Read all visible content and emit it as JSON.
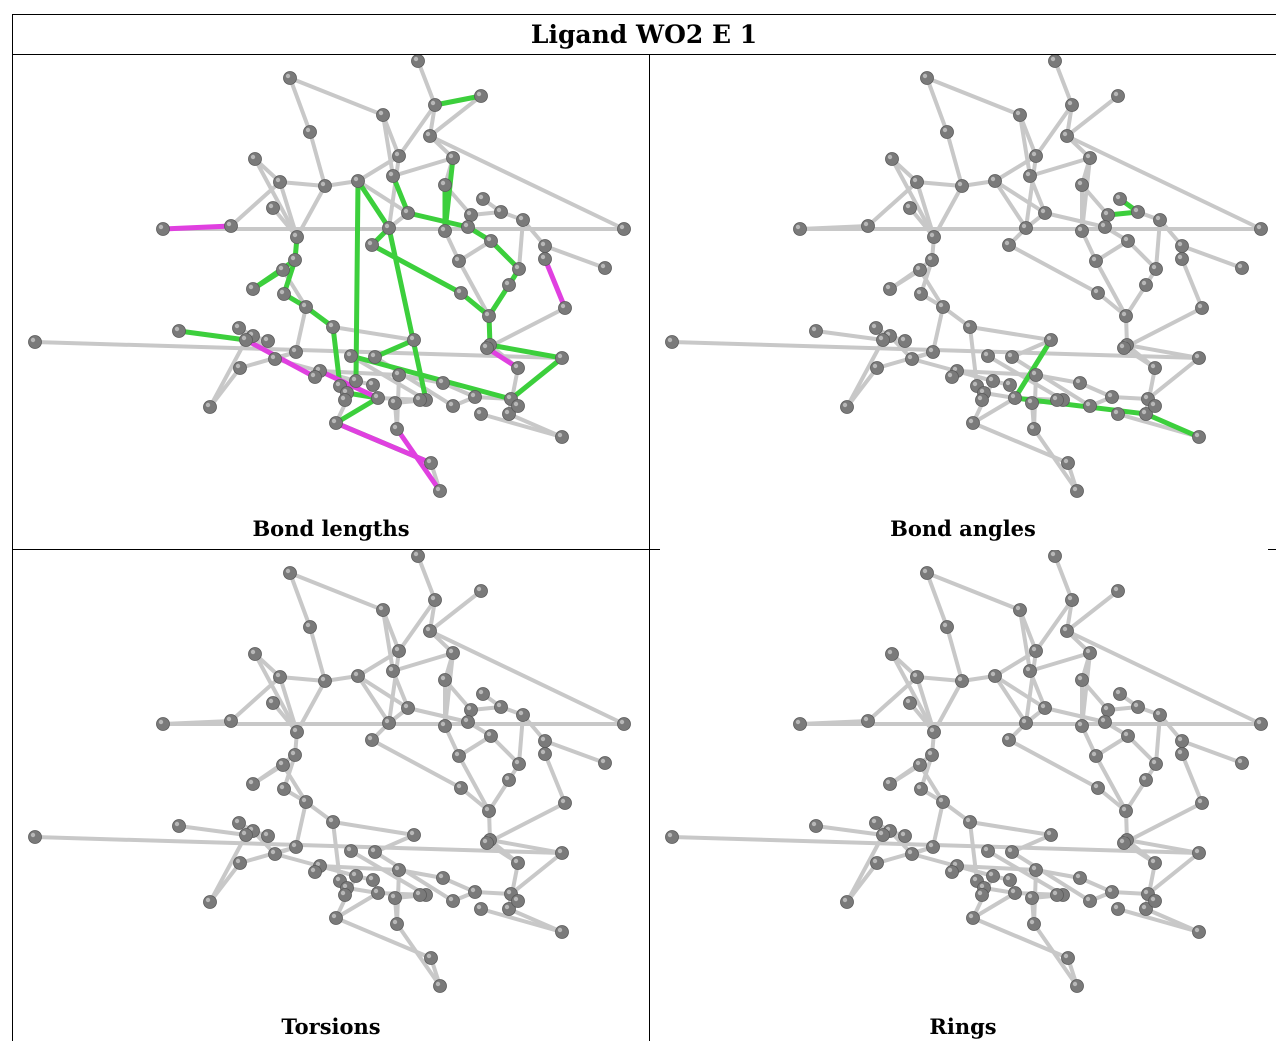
{
  "title": "Ligand WO2 E 1",
  "panels": [
    {
      "id": "bond-lengths",
      "caption": "Bond lengths",
      "highlights": true
    },
    {
      "id": "bond-angles",
      "caption": "Bond angles",
      "highlights": true
    },
    {
      "id": "torsions",
      "caption": "Torsions",
      "highlights": false
    },
    {
      "id": "rings",
      "caption": "Rings",
      "highlights": false
    }
  ],
  "colors": {
    "bond": "#c8c8c8",
    "atom": "#7a7a7a",
    "outlier_green": "#3ccf3c",
    "outlier_magenta": "#e040e0"
  }
}
